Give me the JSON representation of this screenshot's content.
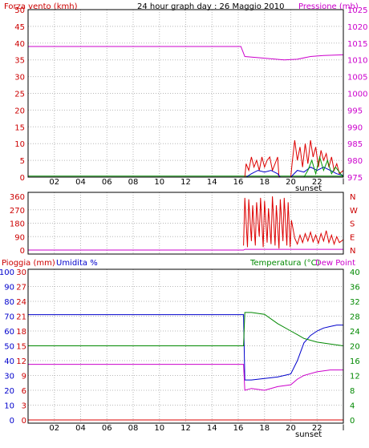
{
  "chart_data": [
    {
      "type": "line",
      "title": "24 hour graph day : 26 Maggio 2010",
      "left_axis": {
        "label": "Forza vento (kmh)",
        "ylim": [
          0,
          50
        ],
        "ticks": [
          "0",
          "5",
          "10",
          "15",
          "20",
          "25",
          "30",
          "35",
          "40",
          "45",
          "50"
        ]
      },
      "right_axis": {
        "label": "Pressione (mb)",
        "ylim": [
          975,
          1025
        ],
        "ticks": [
          "975",
          "980",
          "985",
          "990",
          "995",
          "1000",
          "1005",
          "1010",
          "1015",
          "1020",
          "1025"
        ]
      },
      "x_ticks": [
        "02",
        "04",
        "06",
        "08",
        "10",
        "12",
        "14",
        "16",
        "18",
        "20",
        "22",
        "l"
      ],
      "x_annotation": "sunset",
      "grid": true,
      "series": [
        {
          "axis": "right",
          "color": "#cc00cc",
          "points": [
            [
              0,
              1014
            ],
            [
              16.2,
              1014
            ],
            [
              16.5,
              1011
            ],
            [
              18,
              1010.5
            ],
            [
              19.5,
              1010
            ],
            [
              20.5,
              1010.2
            ],
            [
              21.5,
              1011
            ],
            [
              22.5,
              1011.3
            ],
            [
              24,
              1011.5
            ]
          ]
        },
        {
          "axis": "left",
          "color": "#008800",
          "points": [
            [
              0,
              0.3
            ],
            [
              24,
              0.3
            ]
          ]
        },
        {
          "axis": "left",
          "color": "#dd0000",
          "points": [
            [
              16.5,
              0
            ],
            [
              16.6,
              4
            ],
            [
              16.8,
              2
            ],
            [
              17,
              6
            ],
            [
              17.2,
              3
            ],
            [
              17.4,
              5
            ],
            [
              17.6,
              2
            ],
            [
              17.8,
              6
            ],
            [
              18,
              3
            ],
            [
              18.2,
              5
            ],
            [
              18.4,
              6
            ],
            [
              18.6,
              2
            ],
            [
              18.8,
              4
            ],
            [
              19,
              6
            ],
            [
              19.1,
              0
            ],
            [
              20,
              0
            ],
            [
              20.1,
              4
            ],
            [
              20.3,
              11
            ],
            [
              20.5,
              5
            ],
            [
              20.7,
              9
            ],
            [
              20.9,
              3
            ],
            [
              21.1,
              10
            ],
            [
              21.3,
              4
            ],
            [
              21.5,
              11
            ],
            [
              21.7,
              6
            ],
            [
              21.9,
              9
            ],
            [
              22.1,
              3
            ],
            [
              22.3,
              8
            ],
            [
              22.5,
              5
            ],
            [
              22.7,
              7
            ],
            [
              22.9,
              3
            ],
            [
              23.1,
              6
            ],
            [
              23.3,
              2
            ],
            [
              23.5,
              4
            ],
            [
              23.7,
              1
            ],
            [
              24,
              2
            ]
          ]
        },
        {
          "axis": "left",
          "color": "#0000cc",
          "points": [
            [
              16.6,
              0
            ],
            [
              17,
              1
            ],
            [
              17.5,
              2
            ],
            [
              18,
              1.5
            ],
            [
              18.5,
              2
            ],
            [
              19,
              1
            ],
            [
              19.2,
              0
            ],
            [
              20,
              0
            ],
            [
              20.5,
              2
            ],
            [
              21,
              1.5
            ],
            [
              21.5,
              3
            ],
            [
              22,
              2
            ],
            [
              22.5,
              3
            ],
            [
              23,
              2
            ],
            [
              23.5,
              1
            ],
            [
              24,
              0.5
            ]
          ]
        },
        {
          "axis": "left",
          "color": "#009900",
          "points": [
            [
              21,
              0
            ],
            [
              21.3,
              2
            ],
            [
              21.6,
              5
            ],
            [
              21.9,
              1
            ],
            [
              22.2,
              6
            ],
            [
              22.5,
              2
            ],
            [
              22.8,
              5
            ],
            [
              23.1,
              1
            ],
            [
              23.4,
              3
            ],
            [
              24,
              0
            ]
          ]
        }
      ]
    },
    {
      "type": "line",
      "left_axis": {
        "ylim": [
          0,
          360
        ],
        "ticks": [
          "0",
          "90",
          "180",
          "270",
          "360"
        ]
      },
      "right_axis": {
        "ticks": [
          "N",
          "E",
          "S",
          "W",
          "N"
        ]
      },
      "x_ticks": [],
      "grid": true,
      "series": [
        {
          "color": "#cc00cc",
          "points": [
            [
              0,
              0
            ],
            [
              16.4,
              0
            ],
            [
              16.5,
              5
            ],
            [
              24,
              5
            ]
          ]
        },
        {
          "color": "#dd0000",
          "points": [
            [
              16.4,
              30
            ],
            [
              16.5,
              350
            ],
            [
              16.7,
              20
            ],
            [
              16.8,
              340
            ],
            [
              17,
              60
            ],
            [
              17.1,
              300
            ],
            [
              17.3,
              30
            ],
            [
              17.4,
              320
            ],
            [
              17.6,
              90
            ],
            [
              17.7,
              350
            ],
            [
              17.9,
              20
            ],
            [
              18,
              330
            ],
            [
              18.2,
              50
            ],
            [
              18.3,
              280
            ],
            [
              18.5,
              40
            ],
            [
              18.6,
              360
            ],
            [
              18.8,
              30
            ],
            [
              18.9,
              300
            ],
            [
              19.1,
              10
            ],
            [
              19.2,
              340
            ],
            [
              19.4,
              60
            ],
            [
              19.5,
              350
            ],
            [
              19.7,
              30
            ],
            [
              19.8,
              320
            ],
            [
              19.95,
              20
            ],
            [
              20.05,
              200
            ],
            [
              20.3,
              80
            ],
            [
              20.5,
              40
            ],
            [
              20.7,
              100
            ],
            [
              20.9,
              50
            ],
            [
              21.1,
              110
            ],
            [
              21.3,
              60
            ],
            [
              21.5,
              120
            ],
            [
              21.7,
              55
            ],
            [
              21.9,
              100
            ],
            [
              22.1,
              45
            ],
            [
              22.3,
              110
            ],
            [
              22.5,
              60
            ],
            [
              22.7,
              130
            ],
            [
              22.9,
              50
            ],
            [
              23.1,
              100
            ],
            [
              23.3,
              40
            ],
            [
              23.5,
              90
            ],
            [
              23.7,
              50
            ],
            [
              24,
              70
            ]
          ]
        }
      ]
    },
    {
      "type": "line",
      "left_axis": {
        "label": "Pioggia (mm)",
        "ylim": [
          0,
          30
        ],
        "ticks": [
          "0",
          "3",
          "6",
          "9",
          "12",
          "15",
          "18",
          "21",
          "24",
          "27",
          "30"
        ]
      },
      "left_axis_2": {
        "label": "Umidita %",
        "ylim": [
          0,
          100
        ],
        "ticks": [
          "0",
          "10",
          "20",
          "30",
          "40",
          "50",
          "60",
          "70",
          "80",
          "90",
          "100"
        ]
      },
      "right_axis": {
        "label": "Temperatura (°C)",
        "ylim": [
          0,
          40
        ],
        "ticks": [
          "0",
          "4",
          "8",
          "12",
          "16",
          "20",
          "24",
          "28",
          "32",
          "36",
          "40"
        ]
      },
      "right_label_2": "Dew Point",
      "x_ticks": [
        "02",
        "04",
        "06",
        "08",
        "10",
        "12",
        "14",
        "16",
        "18",
        "20",
        "22",
        "l"
      ],
      "x_annotation": "sunset",
      "grid": true,
      "series": [
        {
          "axis": "humidity",
          "color": "#0000cc",
          "points": [
            [
              0,
              71
            ],
            [
              16.4,
              71
            ],
            [
              16.5,
              27
            ],
            [
              17,
              27
            ],
            [
              18,
              28
            ],
            [
              19,
              29
            ],
            [
              19.5,
              30
            ],
            [
              20,
              31
            ],
            [
              20.5,
              40
            ],
            [
              21,
              52
            ],
            [
              21.5,
              57
            ],
            [
              22,
              60
            ],
            [
              22.5,
              62
            ],
            [
              23,
              63
            ],
            [
              23.5,
              64
            ],
            [
              24,
              64
            ]
          ]
        },
        {
          "axis": "temp",
          "color": "#008800",
          "points": [
            [
              0,
              20
            ],
            [
              16.4,
              20
            ],
            [
              16.5,
              29
            ],
            [
              17,
              29
            ],
            [
              18,
              28.5
            ],
            [
              19,
              26
            ],
            [
              20,
              24
            ],
            [
              20.5,
              23
            ],
            [
              21,
              22
            ],
            [
              22,
              21
            ],
            [
              23,
              20.5
            ],
            [
              24,
              20
            ]
          ]
        },
        {
          "axis": "temp",
          "color": "#cc00cc",
          "points": [
            [
              0,
              15
            ],
            [
              16.4,
              15
            ],
            [
              16.5,
              8
            ],
            [
              17,
              8.5
            ],
            [
              18,
              8
            ],
            [
              19,
              9
            ],
            [
              20,
              9.5
            ],
            [
              20.5,
              11
            ],
            [
              21,
              12
            ],
            [
              22,
              13
            ],
            [
              23,
              13.5
            ],
            [
              24,
              13.5
            ]
          ]
        },
        {
          "axis": "rain",
          "color": "#dd0000",
          "points": [
            [
              0,
              0
            ],
            [
              24,
              0
            ]
          ]
        }
      ]
    }
  ]
}
